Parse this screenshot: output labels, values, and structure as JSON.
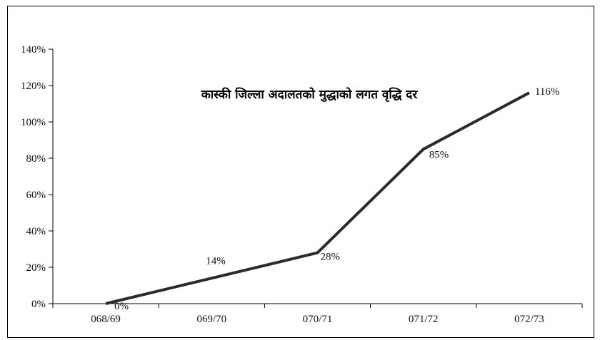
{
  "chart_data": {
    "type": "line",
    "title": "कास्की जिल्ला अदालतको मुद्धाको लगत वृद्धि दर",
    "categories": [
      "068/69",
      "069/70",
      "070/71",
      "071/72",
      "072/73"
    ],
    "series": [
      {
        "values": [
          0,
          14,
          28,
          85,
          116
        ]
      }
    ],
    "data_labels": [
      "0%",
      "14%",
      "28%",
      "85%",
      "116%"
    ],
    "y_ticks": [
      "0%",
      "20%",
      "40%",
      "60%",
      "80%",
      "100%",
      "120%",
      "140%"
    ],
    "ylim": [
      0,
      140
    ],
    "grid": false,
    "legend": "none",
    "colors": {
      "line": "#2b2b2b",
      "axis": "#000000",
      "text": "#111111"
    }
  }
}
